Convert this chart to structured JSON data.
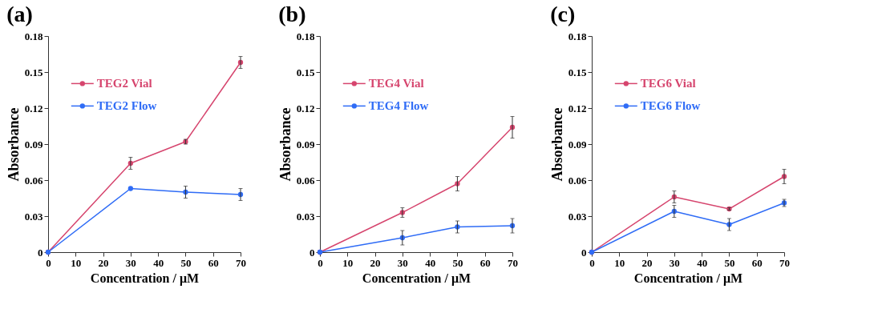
{
  "chart_data": [
    {
      "type": "line",
      "title": "(a)",
      "xlabel": "Concentration / μM",
      "ylabel": "Absorbance",
      "x": [
        0,
        30,
        50,
        70
      ],
      "xlim": [
        0,
        70
      ],
      "xticks": [
        0,
        10,
        20,
        30,
        40,
        50,
        60,
        70
      ],
      "ylim": [
        0,
        0.18
      ],
      "yticks": [
        0,
        0.03,
        0.06,
        0.09,
        0.12,
        0.15,
        0.18
      ],
      "legend": "top left",
      "marker": "circle",
      "line_style": "solid",
      "grid": false,
      "series": [
        {
          "name": "TEG2 Vial",
          "color": "#d6456e",
          "values": [
            0,
            0.074,
            0.092,
            0.158
          ],
          "errors": [
            null,
            0.005,
            0.002,
            0.005
          ]
        },
        {
          "name": "TEG2 Flow",
          "color": "#2f6cf6",
          "values": [
            0,
            0.053,
            0.05,
            0.048
          ],
          "errors": [
            null,
            null,
            0.005,
            0.005
          ]
        }
      ]
    },
    {
      "type": "line",
      "title": "(b)",
      "xlabel": "Concentration / μM",
      "ylabel": "Absorbance",
      "x": [
        0,
        30,
        50,
        70
      ],
      "xlim": [
        0,
        70
      ],
      "xticks": [
        0,
        10,
        20,
        30,
        40,
        50,
        60,
        70
      ],
      "ylim": [
        0,
        0.18
      ],
      "yticks": [
        0,
        0.03,
        0.06,
        0.09,
        0.12,
        0.15,
        0.18
      ],
      "legend": "top left",
      "marker": "circle",
      "line_style": "solid",
      "grid": false,
      "series": [
        {
          "name": "TEG4 Vial",
          "color": "#d6456e",
          "values": [
            0,
            0.033,
            0.057,
            0.104
          ],
          "errors": [
            null,
            0.004,
            0.006,
            0.009
          ]
        },
        {
          "name": "TEG4 Flow",
          "color": "#2f6cf6",
          "values": [
            0,
            0.012,
            0.021,
            0.022
          ],
          "errors": [
            null,
            0.006,
            0.005,
            0.006
          ]
        }
      ]
    },
    {
      "type": "line",
      "title": "(c)",
      "xlabel": "Concentration / μM",
      "ylabel": "Absorbance",
      "x": [
        0,
        30,
        50,
        70
      ],
      "xlim": [
        0,
        70
      ],
      "xticks": [
        0,
        10,
        20,
        30,
        40,
        50,
        60,
        70
      ],
      "ylim": [
        0,
        0.18
      ],
      "yticks": [
        0,
        0.03,
        0.06,
        0.09,
        0.12,
        0.15,
        0.18
      ],
      "legend": "top left",
      "marker": "circle",
      "line_style": "solid",
      "grid": false,
      "series": [
        {
          "name": "TEG6 Vial",
          "color": "#d6456e",
          "values": [
            0,
            0.046,
            0.036,
            0.063
          ],
          "errors": [
            null,
            0.005,
            0.001,
            0.006
          ]
        },
        {
          "name": "TEG6 Flow",
          "color": "#2f6cf6",
          "values": [
            0,
            0.034,
            0.023,
            0.041
          ],
          "errors": [
            null,
            0.005,
            0.005,
            0.003
          ]
        }
      ]
    }
  ]
}
